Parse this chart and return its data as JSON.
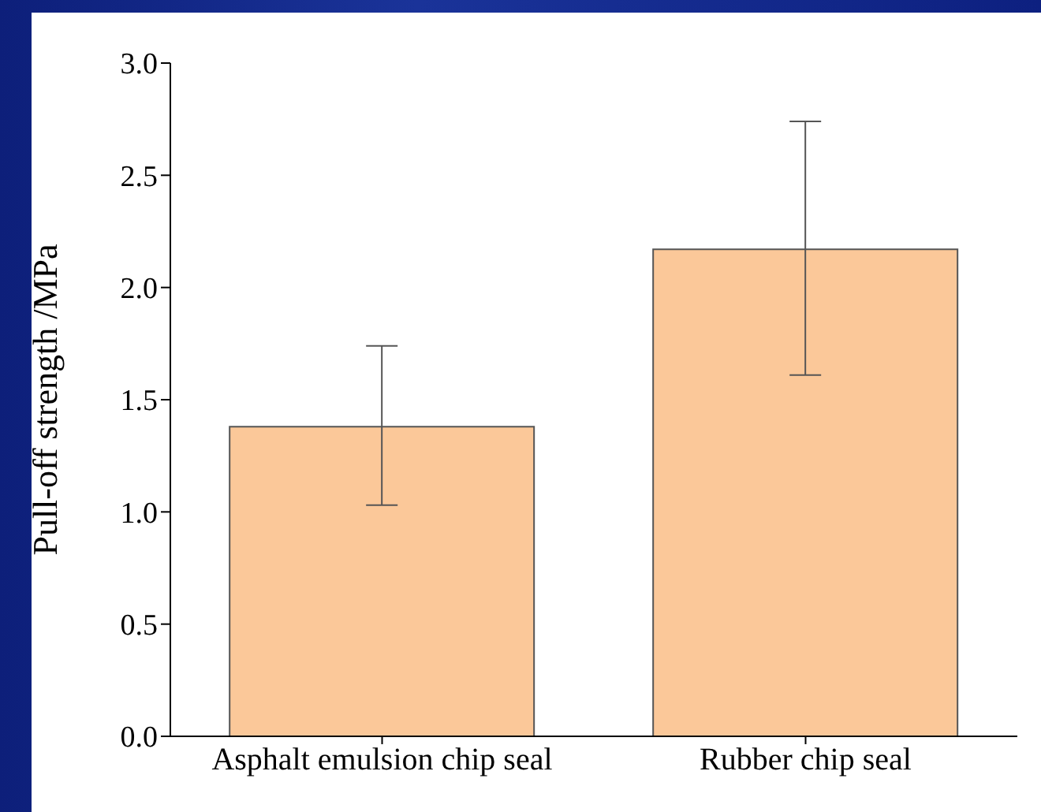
{
  "chart_data": {
    "type": "bar",
    "ylabel": "Pull-off strength /MPa",
    "categories": [
      "Asphalt emulsion chip seal",
      "Rubber chip seal"
    ],
    "values": [
      1.38,
      2.17
    ],
    "errors": [
      [
        1.03,
        1.74
      ],
      [
        1.61,
        2.74
      ]
    ],
    "color": "#fbc899",
    "ylim": [
      0,
      3
    ],
    "yticks": [
      {
        "value": 0,
        "label": "0.0"
      },
      {
        "value": 0.5,
        "label": "0.5"
      },
      {
        "value": 1,
        "label": "1.0"
      },
      {
        "value": 1.5,
        "label": "1.5"
      },
      {
        "value": 2,
        "label": "2.0"
      },
      {
        "value": 2.5,
        "label": "2.5"
      },
      {
        "value": 3,
        "label": "3.0"
      }
    ],
    "grid": false,
    "legend": false
  }
}
